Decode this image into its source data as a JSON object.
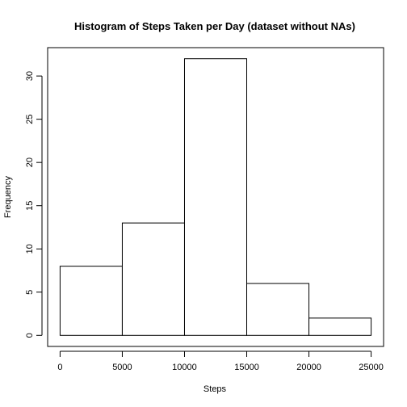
{
  "chart_data": {
    "type": "bar",
    "title": "Histogram of Steps Taken per Day (dataset without NAs)",
    "xlabel": "Steps",
    "ylabel": "Frequency",
    "bins": [
      {
        "start": 0,
        "end": 5000,
        "value": 8
      },
      {
        "start": 5000,
        "end": 10000,
        "value": 13
      },
      {
        "start": 10000,
        "end": 15000,
        "value": 32
      },
      {
        "start": 15000,
        "end": 20000,
        "value": 6
      },
      {
        "start": 20000,
        "end": 25000,
        "value": 2
      }
    ],
    "xlim": [
      -1000,
      26000
    ],
    "ylim": [
      -1.28,
      33.28
    ],
    "x_ticks": [
      0,
      5000,
      10000,
      15000,
      20000,
      25000
    ],
    "y_ticks": [
      0,
      5,
      10,
      15,
      20,
      25,
      30
    ],
    "grid": false,
    "legend": "none"
  }
}
